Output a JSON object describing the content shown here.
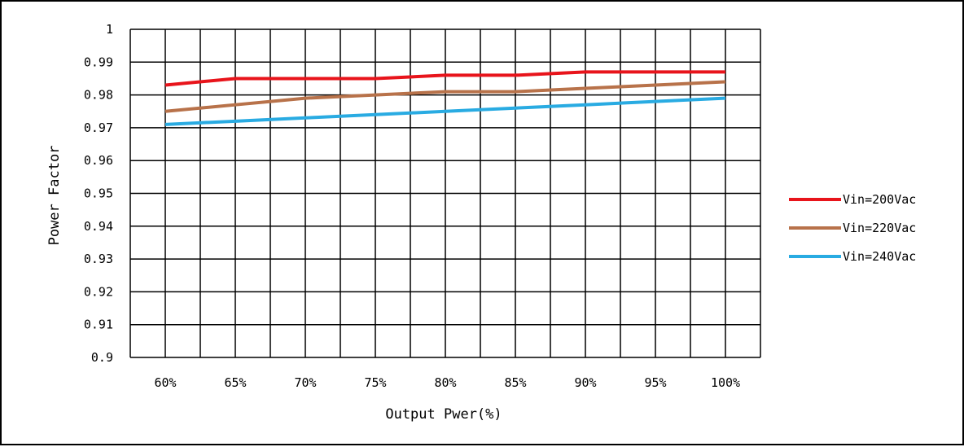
{
  "chart_data": {
    "type": "line",
    "title": "",
    "xlabel": "Output Pwer(%)",
    "ylabel": "Power Factor",
    "categories": [
      "60%",
      "65%",
      "70%",
      "75%",
      "80%",
      "85%",
      "90%",
      "95%",
      "100%"
    ],
    "ylim": [
      0.9,
      1
    ],
    "yticks": [
      "0.9",
      "0.91",
      "0.92",
      "0.93",
      "0.94",
      "0.95",
      "0.96",
      "0.97",
      "0.98",
      "0.99",
      "1"
    ],
    "grid": true,
    "legend_position": "right",
    "series": [
      {
        "name": "Vin=200Vac",
        "color": "#e8141b",
        "values": [
          0.983,
          0.985,
          0.985,
          0.985,
          0.986,
          0.986,
          0.987,
          0.987,
          0.987
        ]
      },
      {
        "name": "Vin=220Vac",
        "color": "#b8724a",
        "values": [
          0.975,
          0.977,
          0.979,
          0.98,
          0.981,
          0.981,
          0.982,
          0.983,
          0.984
        ]
      },
      {
        "name": "Vin=240Vac",
        "color": "#29abe2",
        "values": [
          0.971,
          0.972,
          0.973,
          0.974,
          0.975,
          0.976,
          0.977,
          0.978,
          0.979
        ]
      }
    ]
  }
}
